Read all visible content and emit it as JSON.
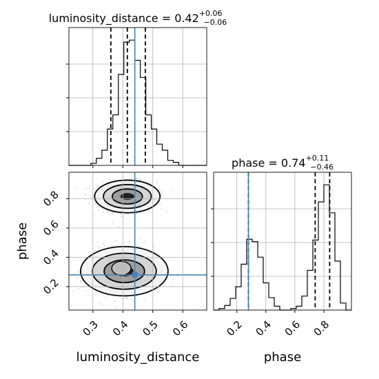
{
  "chart_data": {
    "type": "corner",
    "parameters": [
      "luminosity_distance",
      "phase"
    ],
    "truth": {
      "luminosity_distance": 0.44,
      "phase": 0.28
    },
    "truth_color": "#4682b4",
    "panels": [
      {
        "id": "hist-luminosity-distance",
        "type": "histogram",
        "parameter": "luminosity_distance",
        "title_prefix": "luminosity_distance = ",
        "title_value": "0.42",
        "title_plus": "+0.06",
        "title_minus": "−0.06",
        "xlim": [
          0.22,
          0.68
        ],
        "bin_edges": [
          0.22,
          0.2383,
          0.2567,
          0.275,
          0.2933,
          0.3117,
          0.33,
          0.3483,
          0.3667,
          0.385,
          0.4033,
          0.4217,
          0.44,
          0.4583,
          0.4767,
          0.495,
          0.5133,
          0.5317,
          0.55,
          0.5683,
          0.5867,
          0.605,
          0.6233,
          0.6417,
          0.66,
          0.68
        ],
        "counts": [
          0,
          0,
          0,
          0,
          2,
          7,
          15,
          36,
          50,
          90,
          122,
          124,
          104,
          87,
          50,
          36,
          21,
          15,
          5,
          3,
          0,
          0,
          0,
          0,
          0
        ],
        "quantiles": [
          0.36,
          0.415,
          0.475
        ],
        "truth": 0.44
      },
      {
        "id": "hist-phase",
        "type": "histogram",
        "parameter": "phase",
        "title_prefix": "phase = ",
        "title_value": "0.74",
        "title_plus": "+0.11",
        "title_minus": "−0.46",
        "xlim": [
          0.04,
          0.99
        ],
        "bin_edges": [
          0.04,
          0.078,
          0.116,
          0.154,
          0.192,
          0.23,
          0.268,
          0.306,
          0.344,
          0.382,
          0.42,
          0.458,
          0.496,
          0.534,
          0.572,
          0.61,
          0.648,
          0.686,
          0.724,
          0.762,
          0.8,
          0.838,
          0.876,
          0.914,
          0.952,
          0.99
        ],
        "counts": [
          0,
          2,
          6,
          15,
          30,
          59,
          91,
          88,
          68,
          35,
          16,
          5,
          0,
          0,
          2,
          5,
          18,
          51,
          90,
          139,
          161,
          125,
          63,
          9,
          0
        ],
        "quantiles": [
          0.28,
          0.74,
          0.84
        ],
        "truth": 0.28
      },
      {
        "id": "scatter-phase-vs-luminosity-distance",
        "type": "contour",
        "x_parameter": "luminosity_distance",
        "y_parameter": "phase",
        "xlim": [
          0.22,
          0.68
        ],
        "ylim": [
          0.04,
          0.98
        ],
        "modes": [
          {
            "cx": 0.415,
            "cy": 0.815,
            "sx": 0.042,
            "sy": 0.045,
            "weight": 0.6
          },
          {
            "cx": 0.405,
            "cy": 0.305,
            "sx": 0.052,
            "sy": 0.068,
            "weight": 0.4
          }
        ],
        "truth": {
          "x": 0.44,
          "y": 0.28
        }
      }
    ],
    "axes": {
      "luminosity_distance": {
        "label": "luminosity_distance",
        "ticks": [
          0.3,
          0.4,
          0.5,
          0.6
        ],
        "tick_labels": [
          "0.3",
          "0.4",
          "0.5",
          "0.6"
        ]
      },
      "phase_y": {
        "label": "phase",
        "ticks": [
          0.2,
          0.4,
          0.6,
          0.8
        ],
        "tick_labels": [
          "0.2",
          "0.4",
          "0.6",
          "0.8"
        ]
      },
      "phase_x": {
        "label": "phase",
        "ticks": [
          0.2,
          0.4,
          0.6,
          0.8
        ],
        "tick_labels": [
          "0.2",
          "0.4",
          "0.6",
          "0.8"
        ]
      }
    },
    "grid": true
  }
}
